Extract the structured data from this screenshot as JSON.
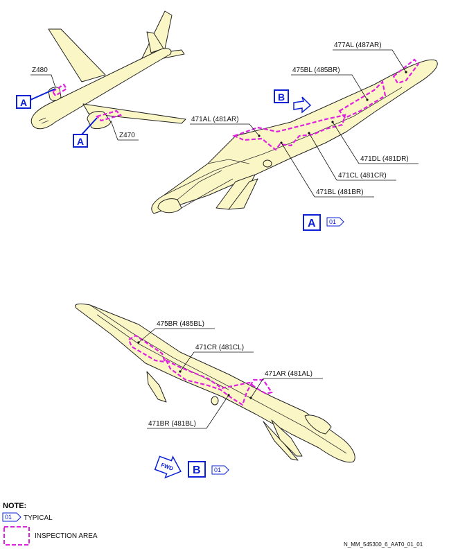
{
  "colors": {
    "skin": "#fbf6c6",
    "inspection": "#e01fe0",
    "callout": "#0a1fd6"
  },
  "view_overview": {
    "zone_upper": "Z480",
    "zone_lower": "Z470",
    "callout_a": "A"
  },
  "view_a": {
    "panel_477": "477AL (487AR)",
    "panel_475": "475BL (485BR)",
    "panel_471a": "471AL (481AR)",
    "panel_471d": "471DL (481DR)",
    "panel_471c": "471CL (481CR)",
    "panel_471b": "471BL (481BR)",
    "callout_b": "B",
    "view_label": "A",
    "view_tag": "01"
  },
  "view_b": {
    "panel_475": "475BR (485BL)",
    "panel_471c": "471CR (481CL)",
    "panel_471a": "471AR (481AL)",
    "panel_471b": "471BR (481BL)",
    "fwd": "FWD",
    "view_label": "B",
    "view_tag": "01"
  },
  "notes": {
    "title": "NOTE:",
    "typical_tag": "01",
    "typical_text": "TYPICAL",
    "inspection_text": "INSPECTION AREA"
  },
  "figure_id": "N_MM_545300_6_AAT0_01_01"
}
